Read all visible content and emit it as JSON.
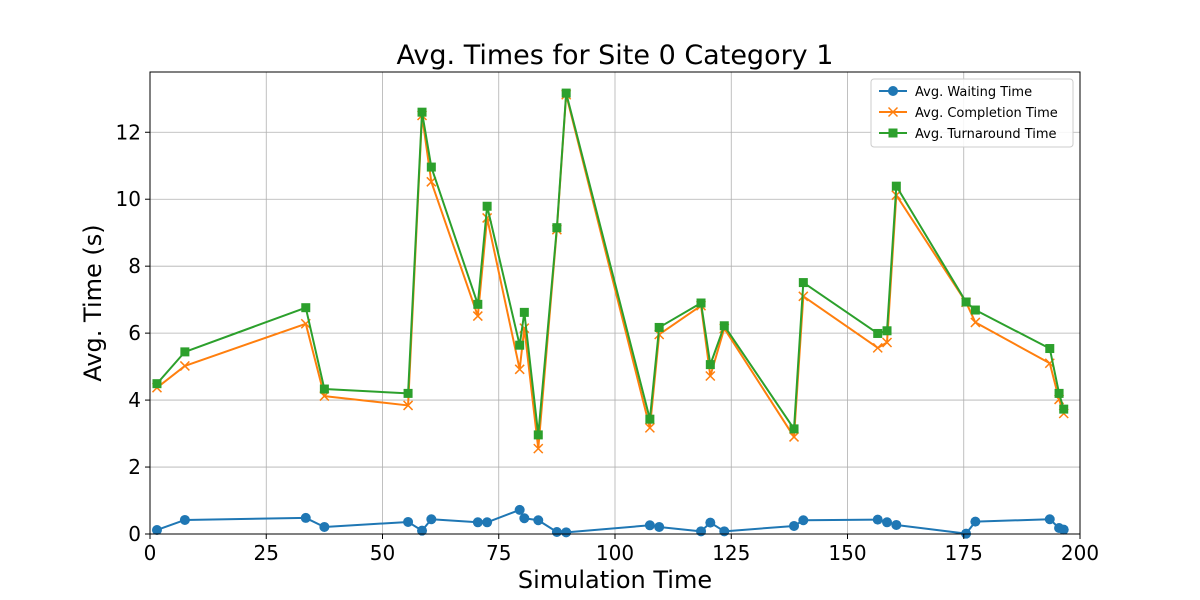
{
  "chart_data": {
    "type": "line",
    "title": "Avg. Times for Site 0 Category 1",
    "xlabel": "Simulation Time",
    "ylabel": "Avg. Time (s)",
    "xlim": [
      0,
      200
    ],
    "ylim": [
      0,
      13.8
    ],
    "xticks": [
      0,
      25,
      50,
      75,
      100,
      125,
      150,
      175,
      200
    ],
    "yticks": [
      0,
      2,
      4,
      6,
      8,
      10,
      12
    ],
    "grid": true,
    "legend_position": "top-right",
    "x": [
      1.5,
      7.5,
      33.5,
      37.5,
      55.5,
      58.5,
      60.5,
      70.5,
      72.5,
      79.5,
      80.5,
      83.5,
      87.5,
      89.5,
      107.5,
      109.5,
      118.5,
      120.5,
      123.5,
      138.5,
      140.5,
      156.5,
      158.5,
      160.5,
      175.5,
      177.5,
      193.5,
      195.5,
      196.5
    ],
    "series": [
      {
        "name": "Avg. Waiting Time",
        "color": "#1f77b4",
        "marker": "circle",
        "values": [
          0.12,
          0.42,
          0.48,
          0.21,
          0.36,
          0.1,
          0.44,
          0.35,
          0.35,
          0.72,
          0.47,
          0.41,
          0.06,
          0.05,
          0.26,
          0.21,
          0.08,
          0.34,
          0.08,
          0.24,
          0.41,
          0.43,
          0.35,
          0.27,
          0.01,
          0.37,
          0.44,
          0.18,
          0.13
        ]
      },
      {
        "name": "Avg. Completion Time",
        "color": "#ff7f0e",
        "marker": "x",
        "values": [
          4.37,
          5.02,
          6.28,
          4.12,
          3.84,
          12.5,
          10.52,
          6.51,
          9.44,
          4.92,
          6.15,
          2.55,
          9.09,
          13.12,
          3.17,
          5.96,
          6.82,
          4.72,
          6.14,
          2.9,
          7.1,
          5.56,
          5.72,
          10.12,
          6.92,
          6.32,
          5.1,
          4.02,
          3.6
        ]
      },
      {
        "name": "Avg. Turnaround Time",
        "color": "#2ca02c",
        "marker": "square",
        "values": [
          4.49,
          5.44,
          6.76,
          4.33,
          4.2,
          12.6,
          10.96,
          6.86,
          9.79,
          5.64,
          6.62,
          2.96,
          9.15,
          13.17,
          3.43,
          6.17,
          6.9,
          5.06,
          6.22,
          3.14,
          7.51,
          5.99,
          6.07,
          10.39,
          6.93,
          6.69,
          5.54,
          4.2,
          3.73
        ]
      }
    ]
  }
}
